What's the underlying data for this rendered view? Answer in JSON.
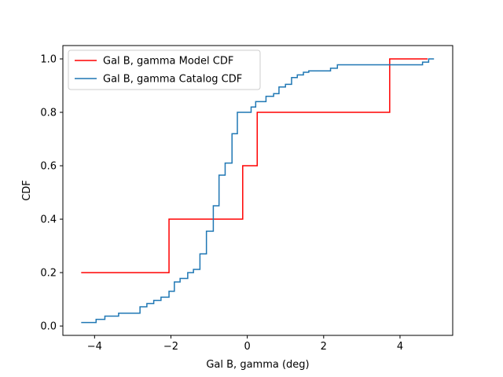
{
  "chart_data": {
    "type": "line",
    "step": "post",
    "title": "",
    "xlabel": "Gal B, gamma (deg)",
    "ylabel": "CDF",
    "xlim": [
      -4.83,
      5.38
    ],
    "ylim": [
      -0.035,
      1.05
    ],
    "xticks": [
      -4,
      -2,
      0,
      2,
      4
    ],
    "xtick_labels": [
      "−4",
      "−2",
      "0",
      "2",
      "4"
    ],
    "yticks": [
      0.0,
      0.2,
      0.4,
      0.6,
      0.8,
      1.0
    ],
    "ytick_labels": [
      "0.0",
      "0.2",
      "0.4",
      "0.6",
      "0.8",
      "1.0"
    ],
    "grid": false,
    "legend_position": "upper-left",
    "series": [
      {
        "name": "Gal B, gamma Model CDF",
        "color": "#ff0000",
        "x": [
          -4.35,
          -2.05,
          -0.12,
          0.26,
          3.73,
          4.72
        ],
        "y": [
          0.2,
          0.4,
          0.6,
          0.8,
          1.0,
          1.0
        ]
      },
      {
        "name": "Gal B, gamma Catalog CDF",
        "color": "#1f77b4",
        "x": [
          -4.35,
          -3.96,
          -3.73,
          -3.37,
          -2.81,
          -2.63,
          -2.45,
          -2.26,
          -2.05,
          -1.91,
          -1.76,
          -1.56,
          -1.41,
          -1.24,
          -1.07,
          -0.89,
          -0.74,
          -0.58,
          -0.4,
          -0.26,
          -0.13,
          0.1,
          0.22,
          0.49,
          0.69,
          0.83,
          1.0,
          1.16,
          1.31,
          1.47,
          1.61,
          2.18,
          2.36,
          4.59,
          4.75,
          4.89
        ],
        "y": [
          0.013,
          0.025,
          0.037,
          0.048,
          0.072,
          0.084,
          0.096,
          0.108,
          0.13,
          0.165,
          0.178,
          0.2,
          0.212,
          0.27,
          0.355,
          0.45,
          0.565,
          0.61,
          0.72,
          0.8,
          0.8,
          0.82,
          0.84,
          0.86,
          0.87,
          0.895,
          0.905,
          0.93,
          0.94,
          0.95,
          0.955,
          0.965,
          0.978,
          0.988,
          1.0,
          1.0
        ]
      }
    ]
  }
}
